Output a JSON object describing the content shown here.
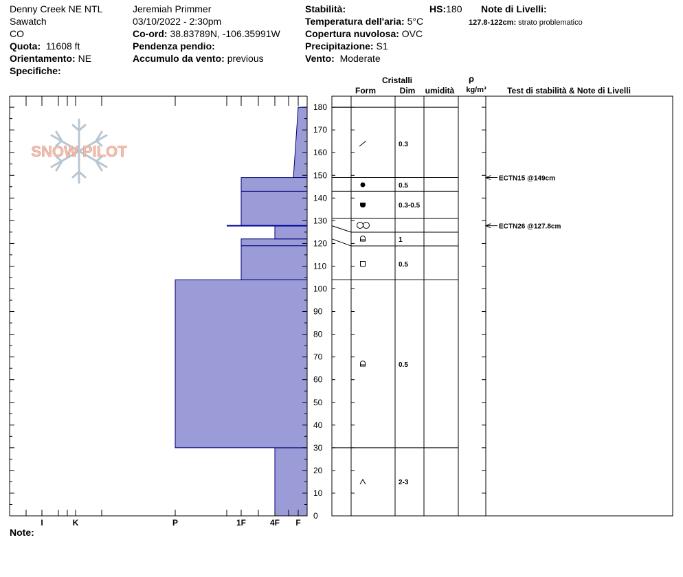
{
  "header": {
    "location": "Denny Creek NE NTL",
    "range": "Sawatch",
    "state": "CO",
    "elevation_label": "Quota:",
    "elevation_value": "11608 ft",
    "aspect_label": "Orientamento:",
    "aspect_value": "NE",
    "specifics_label": "Specifiche:",
    "observer": "Jeremiah Primmer",
    "datetime": "03/10/2022 - 2:30pm",
    "coord_label": "Co-ord:",
    "coord_value": "38.83789N, -106.35991W",
    "slope_label": "Pendenza pendio:",
    "wind_load_label": "Accumulo da vento:",
    "wind_load_value": "previous",
    "stability_label": "Stabilità:",
    "air_temp_label": "Temperatura dell'aria:",
    "air_temp_value": "5°C",
    "cloud_label": "Copertura nuvolosa:",
    "cloud_value": "OVC",
    "precip_label": "Precipitazione:",
    "precip_value": "S1",
    "wind_label": "Vento:",
    "wind_value": "Moderate",
    "hs_label": "HS:",
    "hs_value": "180",
    "layer_notes_label": "Note di Livelli:",
    "layer_note_range": "127.8-122cm:",
    "layer_note_text": "strato problematico",
    "notes_label": "Note:"
  },
  "columns": {
    "crystals": "Cristalli",
    "form": "Form",
    "size": "Dim",
    "moisture": "umidità",
    "rho": "ρ",
    "density_unit": "kg/m³",
    "tests": "Test di stabilità & Note di Livelli"
  },
  "watermark": "SNOW PILOT",
  "colors": {
    "fill": "#9b9bd8",
    "edge": "#00007a",
    "weak_layer": "#00009c",
    "watermark_text": "#f2c0b0",
    "watermark_flake": "#b8c6d2"
  },
  "chart_data": {
    "type": "snow_profile",
    "hardness_scale": [
      "I",
      "K",
      "P",
      "1F",
      "4F",
      "F"
    ],
    "height_ticks": [
      0,
      10,
      20,
      30,
      40,
      50,
      60,
      70,
      80,
      90,
      100,
      110,
      120,
      130,
      140,
      150,
      160,
      170,
      180
    ],
    "ylim": [
      0,
      185
    ],
    "total_depth_cm": 180,
    "layers": [
      {
        "bottom": 0,
        "top": 30,
        "hardness": "4F",
        "form": "depth-hoar",
        "size": "2-3"
      },
      {
        "bottom": 30,
        "top": 104,
        "hardness": "P",
        "form": "faceted-rounded",
        "size": "0.5"
      },
      {
        "bottom": 104,
        "top": 119,
        "hardness": "1F",
        "form": "faceted",
        "size": "0.5"
      },
      {
        "bottom": 119,
        "top": 122,
        "hardness": "1F",
        "form": "faceted-rounded",
        "size": "1"
      },
      {
        "bottom": 122,
        "top": 127.8,
        "hardness": "4F",
        "form": "ice-crust",
        "size": ""
      },
      {
        "bottom": 127.8,
        "top": 143,
        "hardness": "1F",
        "form": "melt-forms",
        "size": "0.3-0.5"
      },
      {
        "bottom": 143,
        "top": 149,
        "hardness": "1F",
        "form": "rounded",
        "size": "0.5"
      },
      {
        "bottom": 149,
        "top": 180,
        "hardness": "F",
        "form": "decomposing",
        "size": "0.3"
      }
    ],
    "weak_layer_cm": 127.8,
    "tests": [
      {
        "label": "ECTN15 @149cm",
        "depth": 149
      },
      {
        "label": "ECTN26 @127.8cm",
        "depth": 127.8
      }
    ]
  }
}
